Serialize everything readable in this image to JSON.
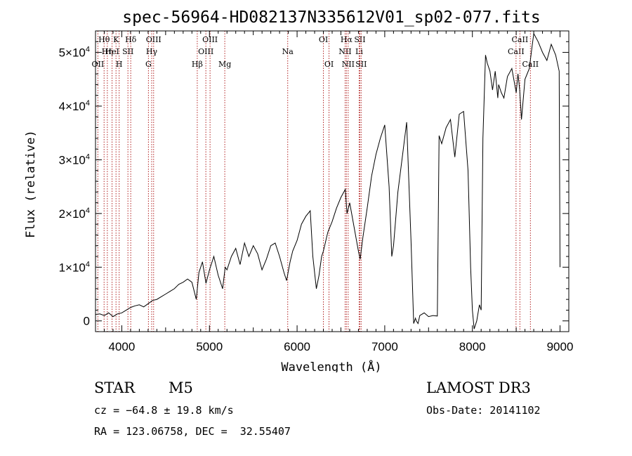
{
  "chart_data": {
    "type": "line",
    "title": "spec-56964-HD082137N335612V01_sp02-077.fits",
    "xlabel": "Wavelength (Å)",
    "ylabel": "Flux (relative)",
    "xlim": [
      3700,
      9100
    ],
    "ylim": [
      -2000,
      54000
    ],
    "x_ticks": [
      4000,
      5000,
      6000,
      7000,
      8000,
      9000
    ],
    "y_ticks": [
      {
        "value": 0,
        "mantissa": "0",
        "exponent": ""
      },
      {
        "value": 10000,
        "mantissa": "1×10",
        "exponent": "4"
      },
      {
        "value": 20000,
        "mantissa": "2×10",
        "exponent": "4"
      },
      {
        "value": 30000,
        "mantissa": "3×10",
        "exponent": "4"
      },
      {
        "value": 40000,
        "mantissa": "4×10",
        "exponent": "4"
      },
      {
        "value": 50000,
        "mantissa": "5×10",
        "exponent": "4"
      }
    ],
    "spectral_lines": [
      {
        "wave": 3727,
        "label": "OII",
        "row": 3
      },
      {
        "wave": 3798,
        "label": "Hθ",
        "row": 1
      },
      {
        "wave": 3835,
        "label": "Hη",
        "row": 2
      },
      {
        "wave": 3889,
        "label": "HeI",
        "row": 2
      },
      {
        "wave": 3934,
        "label": "K",
        "row": 1
      },
      {
        "wave": 3970,
        "label": "H",
        "row": 3
      },
      {
        "wave": 4070,
        "label": "SII",
        "row": 2
      },
      {
        "wave": 4102,
        "label": "Hδ",
        "row": 1
      },
      {
        "wave": 4304,
        "label": "G",
        "row": 3
      },
      {
        "wave": 4341,
        "label": "Hγ",
        "row": 2
      },
      {
        "wave": 4363,
        "label": "OIII",
        "row": 1
      },
      {
        "wave": 4861,
        "label": "Hβ",
        "row": 3
      },
      {
        "wave": 4959,
        "label": "OIII",
        "row": 2
      },
      {
        "wave": 5007,
        "label": "OIII",
        "row": 1
      },
      {
        "wave": 5175,
        "label": "Mg",
        "row": 3
      },
      {
        "wave": 5893,
        "label": "Na",
        "row": 2
      },
      {
        "wave": 6300,
        "label": "OI",
        "row": 1
      },
      {
        "wave": 6364,
        "label": "OI",
        "row": 3
      },
      {
        "wave": 6548,
        "label": "NII",
        "row": 2
      },
      {
        "wave": 6563,
        "label": "Hα",
        "row": 1
      },
      {
        "wave": 6583,
        "label": "NII",
        "row": 3
      },
      {
        "wave": 6708,
        "label": "Li",
        "row": 2
      },
      {
        "wave": 6716,
        "label": "SII",
        "row": 1
      },
      {
        "wave": 6731,
        "label": "SII",
        "row": 3
      },
      {
        "wave": 8498,
        "label": "CaII",
        "row": 2
      },
      {
        "wave": 8542,
        "label": "CaII",
        "row": 1
      },
      {
        "wave": 8662,
        "label": "CaII",
        "row": 3
      }
    ],
    "series": [
      {
        "name": "flux",
        "x": [
          3700,
          3750,
          3800,
          3850,
          3900,
          3950,
          4000,
          4050,
          4100,
          4150,
          4200,
          4250,
          4300,
          4350,
          4400,
          4450,
          4500,
          4550,
          4600,
          4650,
          4700,
          4750,
          4800,
          4850,
          4880,
          4920,
          4960,
          5000,
          5050,
          5100,
          5150,
          5180,
          5200,
          5250,
          5300,
          5350,
          5400,
          5450,
          5500,
          5550,
          5600,
          5650,
          5700,
          5750,
          5800,
          5850,
          5880,
          5920,
          5950,
          6000,
          6050,
          6100,
          6150,
          6180,
          6200,
          6220,
          6250,
          6280,
          6300,
          6350,
          6400,
          6450,
          6500,
          6550,
          6570,
          6600,
          6650,
          6700,
          6720,
          6750,
          6800,
          6850,
          6900,
          6950,
          7000,
          7050,
          7080,
          7100,
          7150,
          7200,
          7250,
          7300,
          7330,
          7350,
          7360,
          7380,
          7400,
          7450,
          7500,
          7550,
          7600,
          7620,
          7650,
          7700,
          7750,
          7800,
          7850,
          7900,
          7950,
          7980,
          8000,
          8020,
          8050,
          8080,
          8100,
          8120,
          8150,
          8170,
          8200,
          8230,
          8260,
          8290,
          8300,
          8330,
          8360,
          8400,
          8450,
          8500,
          8520,
          8540,
          8560,
          8600,
          8650,
          8680,
          8700,
          8750,
          8800,
          8850,
          8900,
          8950,
          8990,
          9000
        ],
        "y": [
          1200,
          1300,
          1000,
          1500,
          800,
          1300,
          1500,
          2000,
          2500,
          2800,
          3000,
          2600,
          3200,
          3800,
          4000,
          4500,
          5000,
          5500,
          6000,
          6800,
          7200,
          7800,
          7200,
          4000,
          9000,
          11000,
          7000,
          9500,
          12000,
          8500,
          6000,
          10000,
          9500,
          12000,
          13500,
          10500,
          14500,
          12000,
          14000,
          12500,
          9500,
          11500,
          14000,
          14500,
          12000,
          9000,
          7500,
          11000,
          13000,
          15000,
          18000,
          19500,
          20500,
          12000,
          9000,
          6000,
          8500,
          12000,
          13000,
          16500,
          18500,
          21000,
          23000,
          24500,
          20000,
          22000,
          17500,
          13000,
          11500,
          15500,
          21000,
          27000,
          31000,
          34000,
          36500,
          25000,
          12000,
          14000,
          24000,
          30500,
          37000,
          15000,
          -500,
          500,
          0,
          -500,
          1000,
          1500,
          800,
          1000,
          900,
          34500,
          33000,
          36000,
          37500,
          30500,
          38500,
          39000,
          28000,
          10000,
          2000,
          -1500,
          0,
          3000,
          2000,
          34000,
          49500,
          48000,
          46500,
          43000,
          46500,
          41500,
          44000,
          42500,
          41500,
          45500,
          47000,
          42500,
          46000,
          43000,
          37500,
          45000,
          47000,
          51000,
          53500,
          52000,
          50000,
          48500,
          51500,
          49500,
          46500,
          10000
        ]
      }
    ]
  },
  "info": {
    "object_type": "STAR",
    "subclass": "M5",
    "survey": "LAMOST DR3",
    "cz": "cz = −64.8 ± 19.8 km/s",
    "obs_date": "Obs-Date: 20141102",
    "coords": "RA = 123.06758, DEC =  32.55407"
  }
}
